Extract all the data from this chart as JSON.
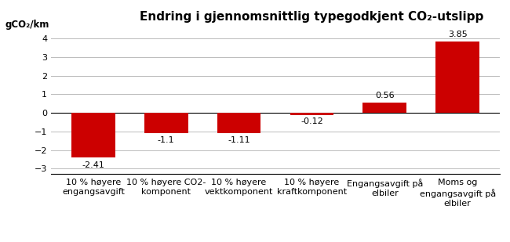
{
  "title": "Endring i gjennomsnittlig typegodkjent CO₂-utslipp",
  "ylabel": "gCO₂/km",
  "categories": [
    "10 % høyere\nengangsavgift",
    "10 % høyere CO2-\nkomponent",
    "10 % høyere\nvektkomponent",
    "10 % høyere\nkraftkomponent",
    "Engangsavgift på\nelbiler",
    "Moms og\nengangsavgift på\nelbiler"
  ],
  "values": [
    -2.41,
    -1.1,
    -1.11,
    -0.12,
    0.56,
    3.85
  ],
  "bar_color": "#cc0000",
  "ylim": [
    -3.3,
    4.5
  ],
  "yticks": [
    -3,
    -2,
    -1,
    0,
    1,
    2,
    3,
    4
  ],
  "label_offsets": [
    -0.18,
    -0.15,
    -0.15,
    -0.15,
    0.15,
    0.15
  ],
  "background_color": "#ffffff",
  "grid_color": "#bbbbbb",
  "title_fontsize": 11,
  "tick_label_fontsize": 8,
  "value_label_fontsize": 8
}
